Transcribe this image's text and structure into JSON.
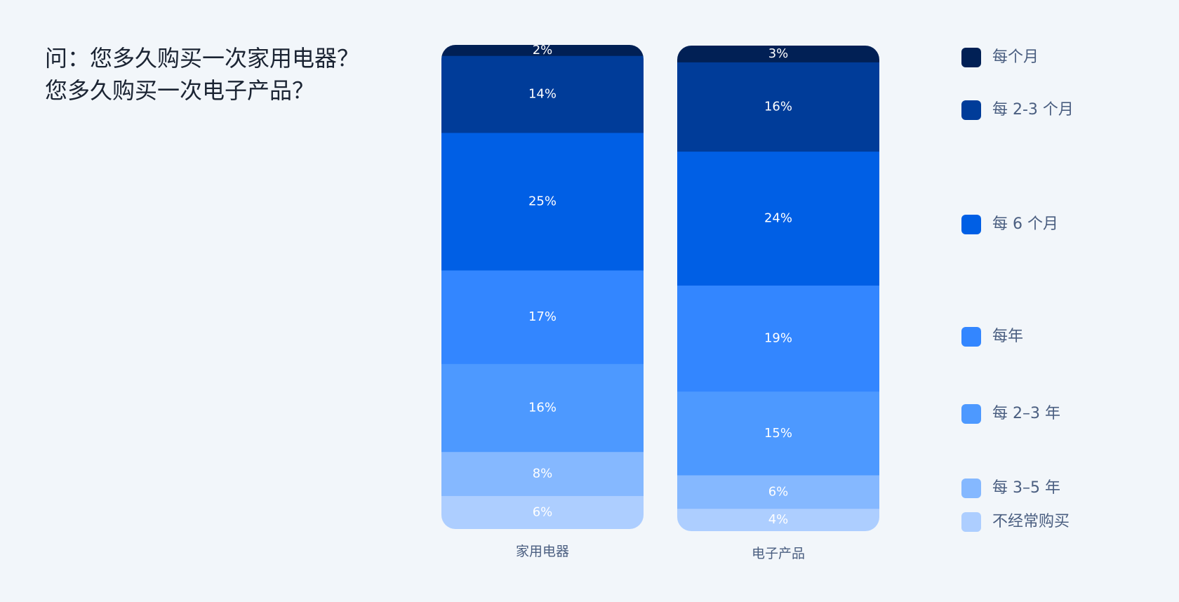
{
  "title": {
    "line1": "问：您多久购买一次家用电器？",
    "line2": "您多久购买一次电子产品？"
  },
  "chart_data": {
    "type": "bar",
    "stacked": true,
    "normalized_percent": true,
    "categories": [
      "家用电器",
      "电子产品"
    ],
    "series": [
      {
        "name": "每个月",
        "color": "#012055",
        "values": [
          2,
          3
        ]
      },
      {
        "name": "每 2-3 个月",
        "color": "#003c99",
        "values": [
          14,
          16
        ]
      },
      {
        "name": "每 6 个月",
        "color": "#005fe5",
        "values": [
          25,
          24
        ]
      },
      {
        "name": "每年",
        "color": "#3386ff",
        "values": [
          17,
          19
        ]
      },
      {
        "name": "每 2–3 年",
        "color": "#4d99ff",
        "values": [
          16,
          15
        ]
      },
      {
        "name": "每 3–5 年",
        "color": "#85b8ff",
        "values": [
          8,
          6
        ]
      },
      {
        "name": "不经常购买",
        "color": "#adceff",
        "values": [
          6,
          4
        ]
      }
    ],
    "legend_position": "right",
    "grid": false
  }
}
